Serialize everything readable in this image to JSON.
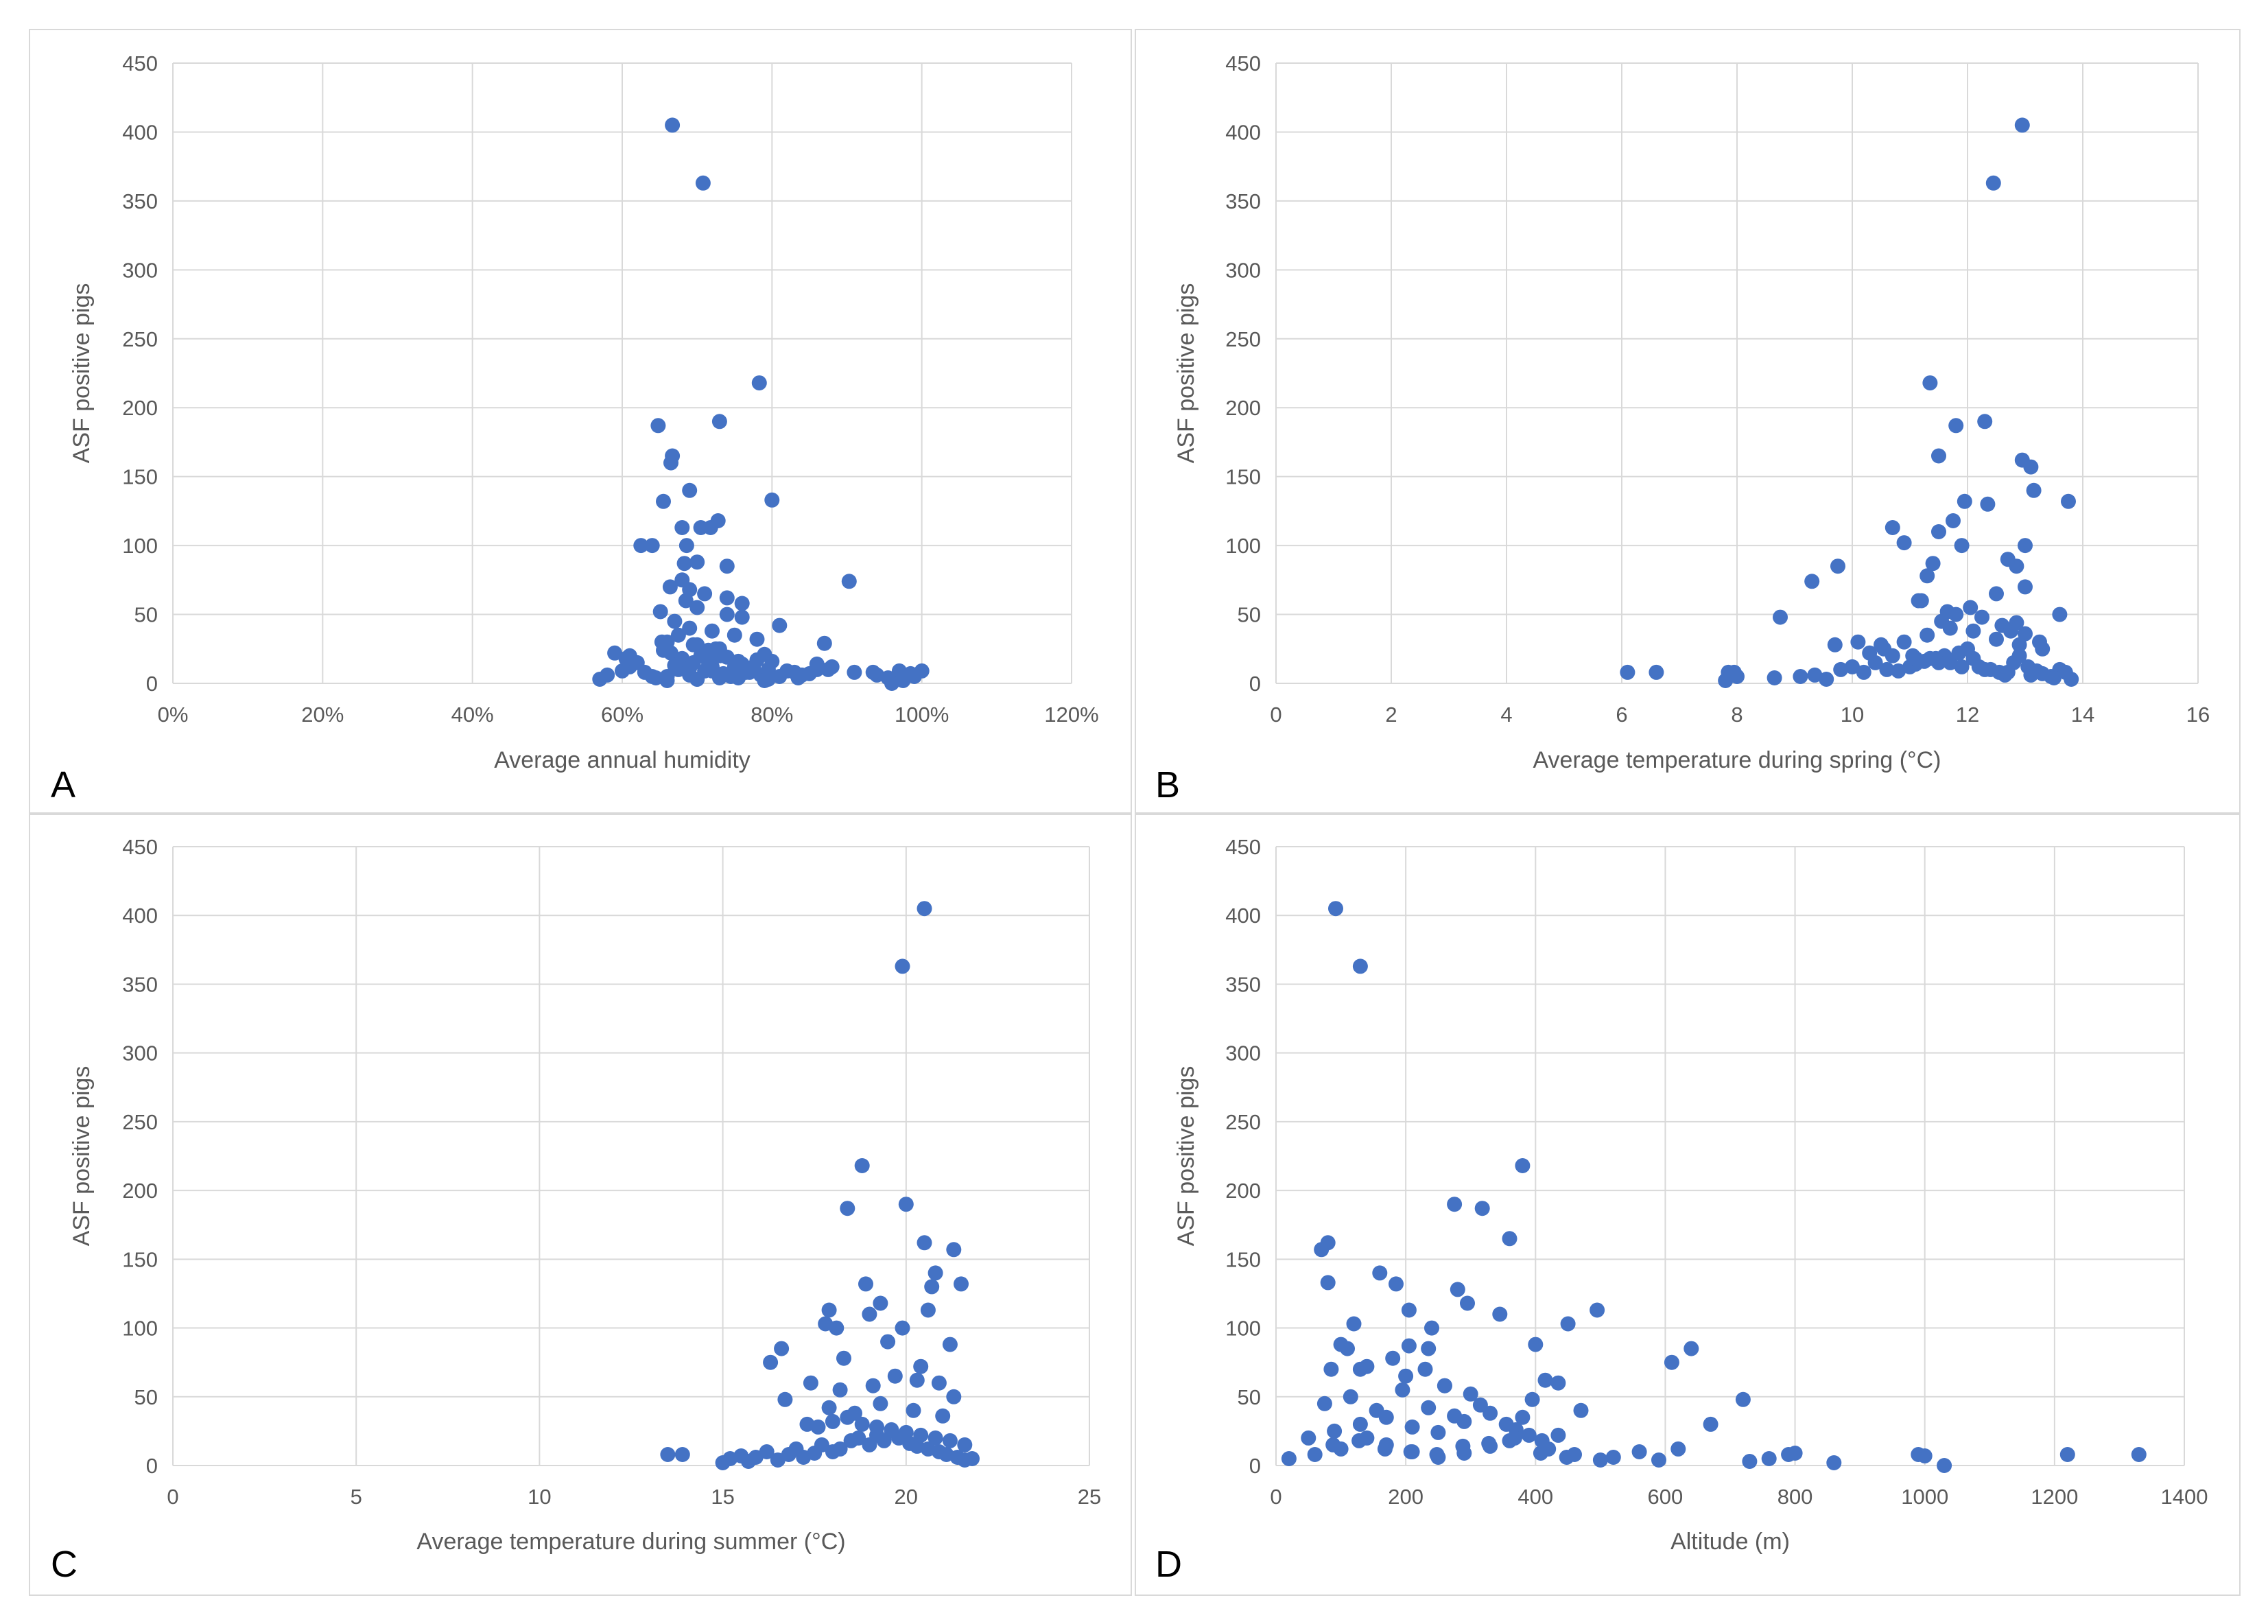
{
  "colors": {
    "marker": "#4472C4",
    "grid": "#d9d9d9",
    "text": "#595959",
    "background": "#ffffff"
  },
  "chart_data": [
    {
      "type": "scatter",
      "panel_label": "A",
      "title": "",
      "xlabel": "Average annual humidity",
      "ylabel": "ASF positive pigs",
      "xlim": [
        0,
        1.2
      ],
      "ylim": [
        0,
        450
      ],
      "x_ticks": [
        0,
        0.2,
        0.4,
        0.6,
        0.8,
        1.0,
        1.2
      ],
      "x_tick_labels": [
        "0%",
        "20%",
        "40%",
        "60%",
        "80%",
        "100%",
        "120%"
      ],
      "y_ticks": [
        0,
        50,
        100,
        150,
        200,
        250,
        300,
        350,
        400,
        450
      ],
      "y_tick_labels": [
        "0",
        "50",
        "100",
        "150",
        "200",
        "250",
        "300",
        "350",
        "400",
        "450"
      ],
      "grid": true,
      "x": [
        0.667,
        0.708,
        0.783,
        0.73,
        0.648,
        0.667,
        0.665,
        0.69,
        0.8,
        0.655,
        0.728,
        0.718,
        0.705,
        0.68,
        0.686,
        0.903,
        0.64,
        0.625,
        0.683,
        0.7,
        0.74,
        0.68,
        0.664,
        0.69,
        0.71,
        0.74,
        0.76,
        0.651,
        0.87,
        0.653,
        0.67,
        0.69,
        0.72,
        0.75,
        0.78,
        0.66,
        0.7,
        0.73,
        0.57,
        0.58,
        0.6,
        0.61,
        0.62,
        0.63,
        0.645,
        0.66,
        0.675,
        0.69,
        0.7,
        0.71,
        0.72,
        0.735,
        0.745,
        0.755,
        0.765,
        0.775,
        0.785,
        0.795,
        0.81,
        0.82,
        0.835,
        0.85,
        0.86,
        0.88,
        0.91,
        0.94,
        0.955,
        0.97,
        0.985,
        1.0,
        0.665,
        0.68,
        0.695,
        0.705,
        0.715,
        0.725,
        0.74,
        0.76,
        0.78,
        0.79,
        0.67,
        0.69,
        0.72,
        0.75,
        0.77,
        0.8,
        0.66,
        0.7,
        0.73,
        0.79,
        0.59,
        0.605,
        0.64,
        0.685,
        0.7,
        0.74,
        0.76,
        0.81,
        0.83,
        0.86,
        0.675,
        0.695,
        0.715,
        0.73,
        0.755,
        0.775,
        0.795,
        0.84,
        0.61,
        0.655,
        0.96,
        0.975,
        0.99,
        0.935,
        0.875
      ],
      "y": [
        405,
        363,
        218,
        190,
        187,
        165,
        160,
        140,
        133,
        132,
        118,
        113,
        113,
        113,
        100,
        74,
        100,
        100,
        87,
        88,
        85,
        75,
        70,
        68,
        65,
        62,
        58,
        52,
        29,
        30,
        45,
        40,
        38,
        35,
        32,
        30,
        28,
        25,
        3,
        6,
        9,
        12,
        15,
        8,
        4,
        5,
        10,
        6,
        3,
        9,
        12,
        7,
        5,
        4,
        8,
        11,
        6,
        3,
        5,
        9,
        4,
        7,
        10,
        12,
        8,
        6,
        4,
        9,
        7,
        9,
        22,
        18,
        15,
        20,
        16,
        25,
        19,
        14,
        17,
        21,
        13,
        11,
        9,
        12,
        8,
        16,
        2,
        3,
        4,
        2,
        22,
        18,
        5,
        60,
        55,
        50,
        48,
        42,
        8,
        14,
        35,
        28,
        24,
        20,
        16,
        12,
        10,
        6,
        20,
        24,
        0,
        2,
        5,
        8,
        10
      ]
    },
    {
      "type": "scatter",
      "panel_label": "B",
      "title": "",
      "xlabel": "Average  temperature  during spring (°C)",
      "ylabel": "ASF positive pigs",
      "xlim": [
        0,
        16
      ],
      "ylim": [
        0,
        450
      ],
      "x_ticks": [
        0,
        2,
        4,
        6,
        8,
        10,
        12,
        14,
        16
      ],
      "x_tick_labels": [
        "0",
        "2",
        "4",
        "6",
        "8",
        "10",
        "12",
        "14",
        "16"
      ],
      "y_ticks": [
        0,
        50,
        100,
        150,
        200,
        250,
        300,
        350,
        400,
        450
      ],
      "y_tick_labels": [
        "0",
        "50",
        "100",
        "150",
        "200",
        "250",
        "300",
        "350",
        "400",
        "450"
      ],
      "grid": true,
      "x": [
        12.95,
        12.45,
        11.35,
        12.3,
        11.8,
        11.5,
        12.95,
        13.1,
        13.15,
        11.95,
        13.75,
        12.35,
        11.75,
        10.7,
        11.5,
        13.0,
        11.9,
        10.9,
        12.7,
        11.4,
        9.75,
        12.85,
        9.3,
        11.3,
        8.75,
        13.6,
        11.2,
        12.5,
        13.0,
        6.1,
        6.6,
        7.85,
        7.95,
        8.0,
        7.8,
        8.65,
        9.1,
        9.35,
        9.55,
        9.8,
        10.0,
        10.2,
        10.4,
        10.6,
        10.8,
        11.0,
        11.1,
        11.25,
        11.45,
        11.6,
        11.7,
        11.85,
        12.0,
        12.1,
        12.2,
        12.4,
        12.55,
        12.65,
        12.8,
        12.9,
        13.05,
        13.2,
        13.3,
        13.45,
        13.6,
        13.7,
        13.8,
        10.5,
        10.9,
        11.3,
        11.7,
        12.1,
        12.5,
        12.9,
        13.3,
        10.3,
        10.7,
        11.1,
        11.5,
        11.9,
        12.3,
        12.7,
        13.1,
        13.5,
        9.7,
        11.55,
        11.8,
        12.05,
        12.6,
        12.75,
        13.0,
        13.25,
        11.15,
        11.65,
        12.25,
        12.85,
        10.1,
        10.55,
        11.05,
        11.35
      ],
      "y": [
        405,
        363,
        218,
        190,
        187,
        165,
        162,
        157,
        140,
        132,
        132,
        130,
        118,
        113,
        110,
        100,
        100,
        102,
        90,
        87,
        85,
        85,
        74,
        78,
        48,
        50,
        60,
        65,
        70,
        8,
        8,
        8,
        8,
        5,
        2,
        4,
        5,
        6,
        3,
        10,
        12,
        8,
        15,
        10,
        9,
        12,
        14,
        16,
        18,
        20,
        15,
        22,
        25,
        18,
        12,
        10,
        8,
        6,
        15,
        20,
        12,
        9,
        7,
        5,
        10,
        8,
        3,
        28,
        30,
        35,
        40,
        38,
        32,
        28,
        25,
        22,
        20,
        18,
        15,
        12,
        10,
        8,
        6,
        4,
        28,
        45,
        50,
        55,
        42,
        38,
        36,
        30,
        60,
        52,
        48,
        44,
        30,
        25,
        20,
        18
      ]
    },
    {
      "type": "scatter",
      "panel_label": "C",
      "title": "",
      "xlabel": "Average temperature  during summer (°C)",
      "ylabel": "ASF positive pigs",
      "xlim": [
        0,
        25
      ],
      "ylim": [
        0,
        450
      ],
      "x_ticks": [
        0,
        5,
        10,
        15,
        20,
        25
      ],
      "x_tick_labels": [
        "0",
        "5",
        "10",
        "15",
        "20",
        "25"
      ],
      "y_ticks": [
        0,
        50,
        100,
        150,
        200,
        250,
        300,
        350,
        400,
        450
      ],
      "y_tick_labels": [
        "0",
        "50",
        "100",
        "150",
        "200",
        "250",
        "300",
        "350",
        "400",
        "450"
      ],
      "grid": true,
      "x": [
        20.5,
        19.9,
        18.8,
        20.0,
        18.4,
        20.5,
        21.3,
        20.8,
        21.5,
        18.9,
        20.7,
        17.9,
        19.0,
        19.3,
        18.1,
        17.8,
        19.9,
        20.6,
        16.6,
        18.3,
        16.3,
        19.5,
        17.3,
        21.2,
        20.4,
        13.5,
        13.9,
        15.0,
        15.2,
        15.5,
        15.7,
        15.9,
        16.2,
        16.5,
        16.8,
        17.0,
        17.2,
        17.5,
        17.7,
        18.0,
        18.2,
        18.5,
        18.7,
        19.0,
        19.2,
        19.4,
        19.6,
        19.8,
        20.1,
        20.3,
        20.6,
        20.9,
        21.1,
        21.4,
        21.6,
        21.8,
        17.6,
        18.0,
        18.4,
        18.8,
        19.2,
        19.6,
        20.0,
        20.4,
        20.8,
        21.2,
        21.6,
        17.9,
        18.6,
        19.3,
        20.2,
        21.0,
        16.7,
        17.4,
        19.7,
        20.9,
        21.3,
        18.2,
        19.1,
        20.3
      ],
      "y": [
        405,
        363,
        218,
        190,
        187,
        162,
        157,
        140,
        132,
        132,
        130,
        113,
        110,
        118,
        100,
        103,
        100,
        113,
        85,
        78,
        75,
        90,
        30,
        88,
        72,
        8,
        8,
        2,
        5,
        7,
        3,
        6,
        10,
        4,
        8,
        12,
        6,
        9,
        15,
        10,
        12,
        18,
        20,
        15,
        22,
        18,
        25,
        20,
        16,
        14,
        12,
        10,
        8,
        6,
        4,
        5,
        28,
        32,
        35,
        30,
        28,
        26,
        24,
        22,
        20,
        18,
        15,
        42,
        38,
        45,
        40,
        36,
        48,
        60,
        65,
        60,
        50,
        55,
        58,
        62
      ]
    },
    {
      "type": "scatter",
      "panel_label": "D",
      "title": "",
      "xlabel": "Altitude (m)",
      "ylabel": "ASF positive pigs",
      "xlim": [
        0,
        1400
      ],
      "ylim": [
        0,
        450
      ],
      "x_ticks": [
        0,
        200,
        400,
        600,
        800,
        1000,
        1200,
        1400
      ],
      "x_tick_labels": [
        "0",
        "200",
        "400",
        "600",
        "800",
        "1000",
        "1200",
        "1400"
      ],
      "y_ticks": [
        0,
        50,
        100,
        150,
        200,
        250,
        300,
        350,
        400,
        450
      ],
      "y_tick_labels": [
        "0",
        "50",
        "100",
        "150",
        "200",
        "250",
        "300",
        "350",
        "400",
        "450"
      ],
      "grid": true,
      "x": [
        92,
        130,
        380,
        275,
        318,
        360,
        80,
        70,
        160,
        185,
        295,
        80,
        280,
        120,
        205,
        345,
        495,
        240,
        450,
        400,
        110,
        100,
        180,
        235,
        205,
        230,
        85,
        130,
        610,
        640,
        260,
        415,
        670,
        720,
        435,
        470,
        20,
        60,
        100,
        140,
        170,
        210,
        250,
        290,
        330,
        360,
        390,
        420,
        460,
        500,
        520,
        560,
        590,
        620,
        730,
        760,
        790,
        800,
        860,
        990,
        1000,
        1030,
        1220,
        1330,
        50,
        90,
        130,
        170,
        210,
        250,
        290,
        330,
        370,
        410,
        75,
        115,
        155,
        195,
        235,
        275,
        315,
        355,
        395,
        435,
        88,
        128,
        168,
        208,
        248,
        288,
        328,
        368,
        408,
        448,
        200,
        300,
        380,
        140,
        260
      ],
      "y": [
        405,
        363,
        218,
        190,
        187,
        165,
        162,
        157,
        140,
        132,
        118,
        133,
        128,
        103,
        113,
        110,
        113,
        100,
        103,
        88,
        85,
        88,
        78,
        85,
        87,
        70,
        70,
        70,
        75,
        85,
        58,
        62,
        30,
        48,
        60,
        40,
        5,
        8,
        12,
        20,
        15,
        10,
        6,
        9,
        14,
        18,
        22,
        12,
        8,
        4,
        6,
        10,
        4,
        12,
        3,
        5,
        8,
        9,
        2,
        8,
        7,
        0,
        8,
        8,
        20,
        25,
        30,
        35,
        28,
        24,
        32,
        38,
        26,
        18,
        45,
        50,
        40,
        55,
        42,
        36,
        44,
        30,
        48,
        22,
        15,
        18,
        12,
        10,
        8,
        14,
        16,
        20,
        9,
        6,
        65,
        52,
        35,
        72,
        58
      ]
    }
  ]
}
